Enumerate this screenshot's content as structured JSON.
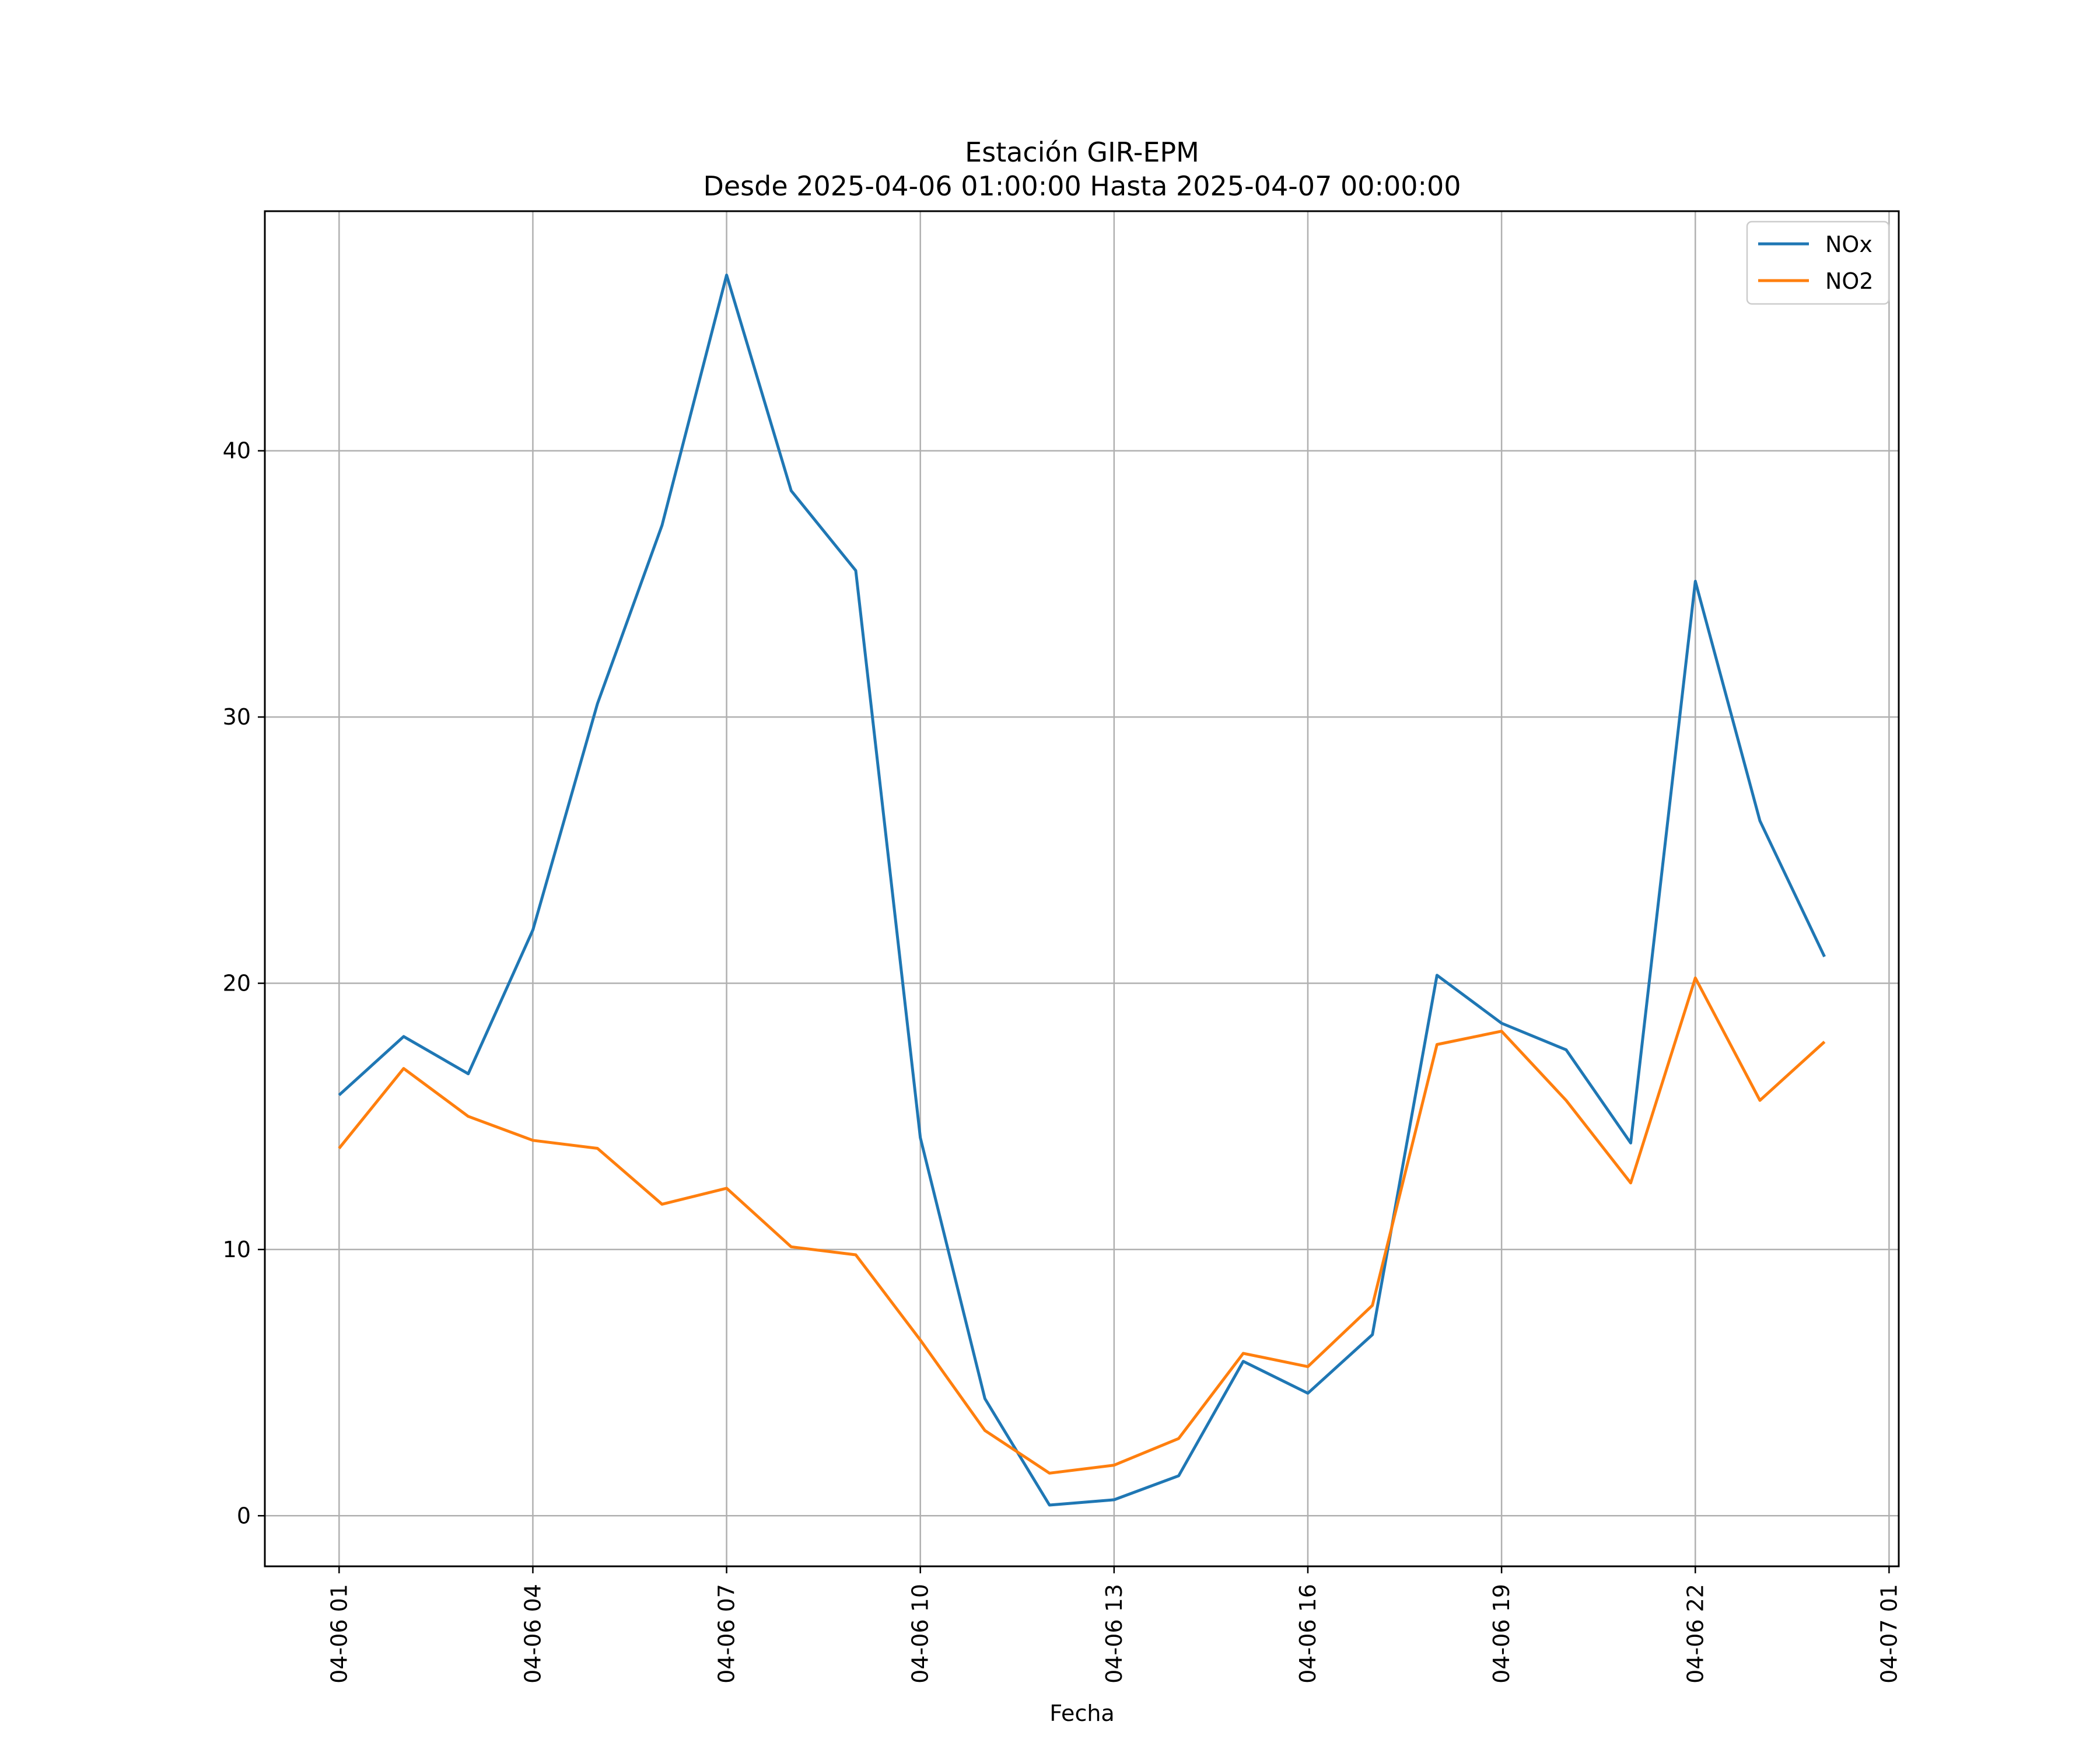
{
  "chart_data": {
    "type": "line",
    "title": "Estación GIR-EPM",
    "subtitle": "Desde 2025-04-06 01:00:00 Hasta 2025-04-07 00:00:00",
    "xlabel": "Fecha",
    "ylabel": "",
    "x": [
      "2025-04-06 01:00",
      "2025-04-06 02:00",
      "2025-04-06 03:00",
      "2025-04-06 04:00",
      "2025-04-06 05:00",
      "2025-04-06 06:00",
      "2025-04-06 07:00",
      "2025-04-06 08:00",
      "2025-04-06 09:00",
      "2025-04-06 10:00",
      "2025-04-06 11:00",
      "2025-04-06 12:00",
      "2025-04-06 13:00",
      "2025-04-06 14:00",
      "2025-04-06 15:00",
      "2025-04-06 16:00",
      "2025-04-06 17:00",
      "2025-04-06 18:00",
      "2025-04-06 19:00",
      "2025-04-06 20:00",
      "2025-04-06 21:00",
      "2025-04-06 22:00",
      "2025-04-06 23:00",
      "2025-04-07 00:00"
    ],
    "series": [
      {
        "name": "NOx",
        "color": "#1f77b4",
        "values": [
          15.8,
          18.0,
          16.6,
          22.0,
          30.5,
          37.2,
          46.6,
          38.5,
          35.5,
          14.2,
          4.4,
          0.4,
          0.6,
          1.5,
          5.8,
          4.6,
          6.8,
          20.3,
          18.5,
          17.5,
          14.0,
          35.1,
          26.1,
          21.0
        ]
      },
      {
        "name": "NO2",
        "color": "#ff7f0e",
        "values": [
          13.8,
          16.8,
          15.0,
          14.1,
          13.8,
          11.7,
          12.3,
          10.1,
          9.8,
          6.6,
          3.2,
          1.6,
          1.9,
          2.9,
          6.1,
          5.6,
          7.9,
          17.7,
          18.2,
          15.6,
          12.5,
          20.2,
          15.6,
          17.8
        ]
      }
    ],
    "x_ticks": [
      "04-06 01",
      "04-06 04",
      "04-06 07",
      "04-06 10",
      "04-06 13",
      "04-06 16",
      "04-06 19",
      "04-06 22",
      "04-07 01"
    ],
    "y_ticks": [
      0,
      10,
      20,
      30,
      40
    ],
    "xlim": [
      "2025-04-05 23:51",
      "2025-04-07 01:09"
    ],
    "ylim": [
      -1.9,
      49.0
    ],
    "grid": true,
    "legend_position": "top-right"
  }
}
